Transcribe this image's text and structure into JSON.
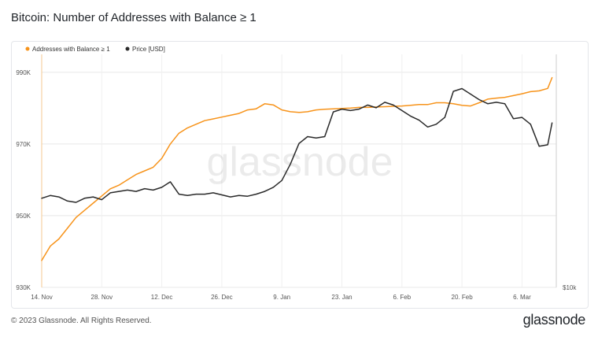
{
  "title": "Bitcoin: Number of Addresses with Balance ≥ 1",
  "watermark": "glassnode",
  "footer": {
    "copyright": "© 2023 Glassnode. All Rights Reserved.",
    "logo": "glassnode"
  },
  "chart_data": {
    "type": "line",
    "title": "Bitcoin: Number of Addresses with Balance ≥ 1",
    "legend_placement": "top-left",
    "grid": true,
    "x_range": [
      "2022-11-14",
      "2023-03-14"
    ],
    "xticks": [
      "14. Nov",
      "28. Nov",
      "12. Dec",
      "26. Dec",
      "9. Jan",
      "23. Jan",
      "6. Feb",
      "20. Feb",
      "6. Mar"
    ],
    "yticks_left": [
      "930K",
      "950K",
      "970K",
      "990K"
    ],
    "ylim_left": [
      930000,
      995000
    ],
    "yticks_right": [
      "$10k"
    ],
    "ylim_right": [
      10000,
      27000
    ],
    "series": [
      {
        "name": "Addresses with Balance ≥ 1",
        "color": "#f7931a",
        "axis": "left",
        "x": [
          "2022-11-14",
          "2022-11-16",
          "2022-11-18",
          "2022-11-20",
          "2022-11-22",
          "2022-11-24",
          "2022-11-26",
          "2022-11-28",
          "2022-11-30",
          "2022-12-02",
          "2022-12-04",
          "2022-12-06",
          "2022-12-08",
          "2022-12-10",
          "2022-12-12",
          "2022-12-14",
          "2022-12-16",
          "2022-12-18",
          "2022-12-20",
          "2022-12-22",
          "2022-12-24",
          "2022-12-26",
          "2022-12-28",
          "2022-12-30",
          "2023-01-01",
          "2023-01-03",
          "2023-01-05",
          "2023-01-07",
          "2023-01-09",
          "2023-01-11",
          "2023-01-13",
          "2023-01-15",
          "2023-01-17",
          "2023-01-19",
          "2023-01-21",
          "2023-01-23",
          "2023-01-25",
          "2023-01-27",
          "2023-01-29",
          "2023-01-31",
          "2023-02-02",
          "2023-02-04",
          "2023-02-06",
          "2023-02-08",
          "2023-02-10",
          "2023-02-12",
          "2023-02-14",
          "2023-02-16",
          "2023-02-18",
          "2023-02-20",
          "2023-02-22",
          "2023-02-24",
          "2023-02-26",
          "2023-02-28",
          "2023-03-02",
          "2023-03-04",
          "2023-03-06",
          "2023-03-08",
          "2023-03-10",
          "2023-03-12",
          "2023-03-13"
        ],
        "values": [
          937500,
          941500,
          943500,
          946500,
          949500,
          951500,
          953500,
          955500,
          957500,
          958500,
          960000,
          961500,
          962500,
          963500,
          966000,
          970000,
          973000,
          974500,
          975500,
          976500,
          977000,
          977500,
          978000,
          978500,
          979500,
          979800,
          981200,
          980900,
          979500,
          979000,
          978800,
          979000,
          979500,
          979700,
          979800,
          979900,
          980000,
          980200,
          980200,
          980300,
          980400,
          980500,
          980600,
          980800,
          981000,
          981000,
          981500,
          981500,
          981200,
          980800,
          980600,
          981500,
          982500,
          982800,
          983000,
          983500,
          984000,
          984600,
          984800,
          985500,
          988500
        ]
      },
      {
        "name": "Price [USD]",
        "color": "#2a2a2a",
        "axis": "right",
        "x": [
          "2022-11-14",
          "2022-11-16",
          "2022-11-18",
          "2022-11-20",
          "2022-11-22",
          "2022-11-24",
          "2022-11-26",
          "2022-11-28",
          "2022-11-30",
          "2022-12-02",
          "2022-12-04",
          "2022-12-06",
          "2022-12-08",
          "2022-12-10",
          "2022-12-12",
          "2022-12-14",
          "2022-12-16",
          "2022-12-18",
          "2022-12-20",
          "2022-12-22",
          "2022-12-24",
          "2022-12-26",
          "2022-12-28",
          "2022-12-30",
          "2023-01-01",
          "2023-01-03",
          "2023-01-05",
          "2023-01-07",
          "2023-01-09",
          "2023-01-11",
          "2023-01-13",
          "2023-01-15",
          "2023-01-17",
          "2023-01-19",
          "2023-01-21",
          "2023-01-23",
          "2023-01-25",
          "2023-01-27",
          "2023-01-29",
          "2023-01-31",
          "2023-02-02",
          "2023-02-04",
          "2023-02-06",
          "2023-02-08",
          "2023-02-10",
          "2023-02-12",
          "2023-02-14",
          "2023-02-16",
          "2023-02-18",
          "2023-02-20",
          "2023-02-22",
          "2023-02-24",
          "2023-02-26",
          "2023-02-28",
          "2023-03-02",
          "2023-03-04",
          "2023-03-06",
          "2023-03-08",
          "2023-03-10",
          "2023-03-12",
          "2023-03-13"
        ],
        "values": [
          16500,
          16700,
          16600,
          16300,
          16200,
          16500,
          16600,
          16400,
          16900,
          17000,
          17100,
          17000,
          17200,
          17100,
          17300,
          17700,
          16800,
          16700,
          16800,
          16800,
          16900,
          16750,
          16600,
          16700,
          16650,
          16800,
          17000,
          17300,
          17800,
          19000,
          20500,
          21000,
          20900,
          21000,
          22800,
          23000,
          22900,
          23000,
          23300,
          23100,
          23500,
          23300,
          22900,
          22500,
          22200,
          21700,
          21900,
          22400,
          24300,
          24500,
          24100,
          23700,
          23400,
          23500,
          23400,
          22300,
          22400,
          21900,
          20300,
          20400,
          22000
        ]
      }
    ]
  }
}
